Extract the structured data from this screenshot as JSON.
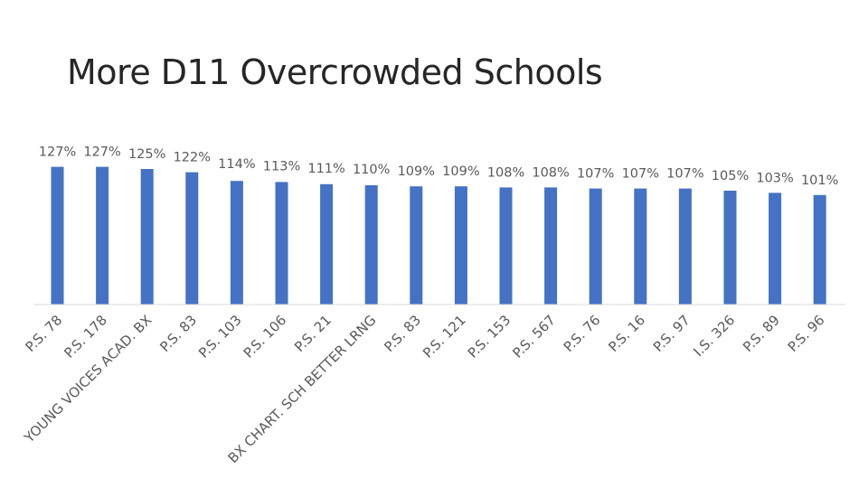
{
  "title": "More D11 Overcrowded Schools",
  "colors": {
    "bar": "#4472C4",
    "text": "#595959",
    "axis": "#d9d9d9"
  },
  "chart_data": {
    "type": "bar",
    "title": "More D11 Overcrowded Schools",
    "xlabel": "",
    "ylabel": "",
    "ylim": [
      0,
      130
    ],
    "grid": false,
    "categories": [
      "P.S. 78",
      "P.S. 178",
      "YOUNG VOICES ACAD. BX",
      "P.S. 83",
      "P.S. 103",
      "P.S. 106",
      "P.S. 21",
      "BX CHART. SCH BETTER LRNG",
      "P.S. 83",
      "P.S. 121",
      "P.S. 153",
      "P.S. 567",
      "P.S. 76",
      "P.S. 16",
      "P.S. 97",
      "I.S. 326",
      "P.S. 89",
      "P.S. 96"
    ],
    "values": [
      127,
      127,
      125,
      122,
      114,
      113,
      111,
      110,
      109,
      109,
      108,
      108,
      107,
      107,
      107,
      105,
      103,
      101
    ],
    "labels": [
      "127%",
      "127%",
      "125%",
      "122%",
      "114%",
      "113%",
      "111%",
      "110%",
      "109%",
      "109%",
      "108%",
      "108%",
      "107%",
      "107%",
      "107%",
      "105%",
      "103%",
      "101%"
    ]
  }
}
